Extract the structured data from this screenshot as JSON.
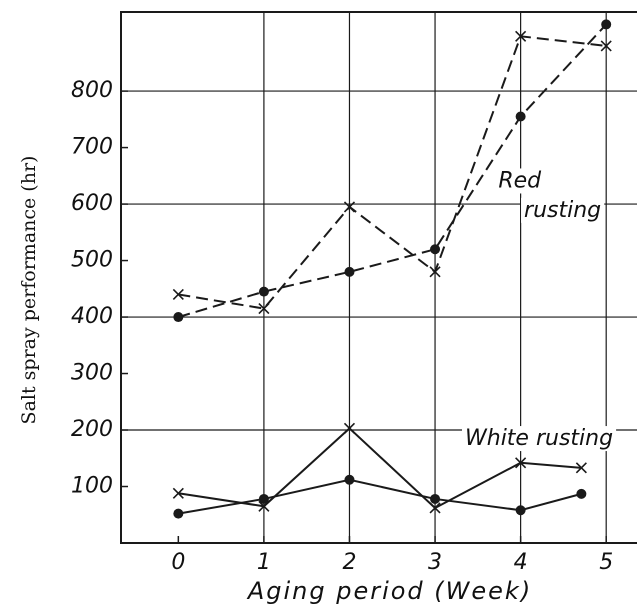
{
  "chart_data": {
    "type": "line",
    "xlabel": "Aging period (Week)",
    "ylabel": "Salt spray performance (hr)",
    "xlim": [
      -0.67,
      5.36
    ],
    "ylim": [
      0,
      940
    ],
    "xticks": [
      0,
      1,
      2,
      3,
      4,
      5
    ],
    "yticks": [
      100,
      200,
      300,
      400,
      500,
      600,
      700,
      800
    ],
    "xgrid": [
      1,
      2,
      3,
      4,
      5
    ],
    "ygrid": [
      200,
      400,
      600,
      800
    ],
    "color": "#1a1a1a",
    "series": [
      {
        "x": [
          0,
          1,
          2,
          3,
          4,
          5
        ],
        "values": [
          400,
          445,
          480,
          520,
          755,
          918
        ],
        "marker": "circle",
        "dashed": true
      },
      {
        "x": [
          0,
          1,
          2,
          3,
          4,
          5
        ],
        "values": [
          440,
          415,
          595,
          480,
          897,
          880
        ],
        "marker": "cross",
        "dashed": true
      },
      {
        "x": [
          0,
          1,
          2,
          3,
          4,
          4.71
        ],
        "values": [
          52,
          78,
          112,
          78,
          58,
          87
        ],
        "marker": "circle",
        "dashed": false
      },
      {
        "x": [
          0,
          1,
          2,
          3,
          4,
          4.71
        ],
        "values": [
          88,
          65,
          203,
          62,
          142,
          133
        ],
        "marker": "cross",
        "dashed": false
      }
    ],
    "annotations": [
      {
        "text": "Red",
        "x": 3.74,
        "y": 640
      },
      {
        "text": "rusting",
        "x": 4.04,
        "y": 588
      },
      {
        "text": "White rusting",
        "x": 3.35,
        "y": 184
      }
    ]
  }
}
